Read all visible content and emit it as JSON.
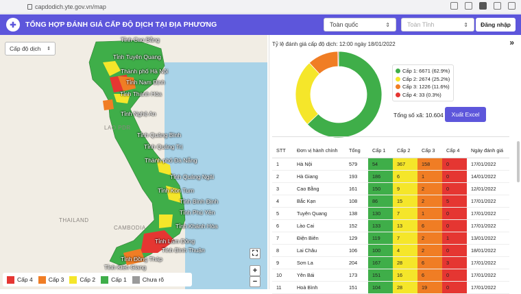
{
  "browser": {
    "url": "capdodich.yte.gov.vn/map"
  },
  "header": {
    "title": "TỔNG HỢP ĐÁNH GIÁ CẤP ĐỘ DỊCH TẠI ĐỊA PHƯƠNG",
    "country_select": "Toàn quốc",
    "province_select_placeholder": "Toàn Tỉnh",
    "login_label": "Đăng nhập",
    "brand_color": "#5d56db"
  },
  "map": {
    "level_select": "Cấp độ dịch",
    "countries": {
      "laos": "LAO PDR",
      "thailand": "THAILAND",
      "cambodia": "CAMBODIA"
    },
    "provinces": [
      "Tỉnh Cao Bằng",
      "Tỉnh Tuyên Quang",
      "Thành phố Hà Nội",
      "Tỉnh Nam Định",
      "Tỉnh Thanh Hóa",
      "Tỉnh Nghệ An",
      "Tỉnh Quảng Bình",
      "Tỉnh Quảng Trị",
      "Thành phố Đà Nẵng",
      "Tỉnh Quảng Ngãi",
      "Tỉnh Kon Tum",
      "Tỉnh Bình Định",
      "Tỉnh Phú Yên",
      "Tỉnh Khánh Hòa",
      "Tỉnh Lâm Đồng",
      "Tỉnh Bình Thuận",
      "Tỉnh Đồng Tháp",
      "Tỉnh Kiên Giang"
    ],
    "controls": {
      "fullscreen": "⛶",
      "zoom_in": "+",
      "zoom_out": "−"
    },
    "legend": [
      {
        "label": "Cấp 4",
        "color": "#e53632"
      },
      {
        "label": "Cấp 3",
        "color": "#f07d24"
      },
      {
        "label": "Cấp 2",
        "color": "#f5e62a"
      },
      {
        "label": "Cấp 1",
        "color": "#3fae49"
      },
      {
        "label": "Chưa rõ",
        "color": "#9a9a9a"
      }
    ]
  },
  "panel": {
    "ratio_title": "Tỷ lệ đánh giá cấp độ dịch: 12:00 ngày 18/01/2022",
    "collapse_icon": "»",
    "total_label": "Tổng số xã: 10.604",
    "export_label": "Xuất Excel"
  },
  "chart_data": {
    "type": "pie",
    "donut": true,
    "title": "Tỷ lệ đánh giá cấp độ dịch: 12:00 ngày 18/01/2022",
    "categories": [
      "Cấp 1",
      "Cấp 2",
      "Cấp 3",
      "Cấp 4"
    ],
    "values": [
      6671,
      2674,
      1226,
      33
    ],
    "percent": [
      62.9,
      25.2,
      11.6,
      0.3
    ],
    "labels": [
      "Cấp 1: 6671 (62.9%)",
      "Cấp 2: 2674 (25.2%)",
      "Cấp 3: 1226 (11.6%)",
      "Cấp 4: 33 (0.3%)"
    ],
    "colors": [
      "#3fae49",
      "#f5e62a",
      "#f07d24",
      "#e53632"
    ],
    "legend_position": "right"
  },
  "table": {
    "headers": [
      "STT",
      "Đơn vị hành chính",
      "Tổng",
      "Cấp 1",
      "Cấp 2",
      "Cấp 3",
      "Cấp 4",
      "Ngày đánh giá"
    ],
    "rows": [
      [
        "1",
        "Hà Nội",
        "579",
        "54",
        "367",
        "158",
        "0",
        "17/01/2022"
      ],
      [
        "2",
        "Hà Giang",
        "193",
        "186",
        "6",
        "1",
        "0",
        "14/01/2022"
      ],
      [
        "3",
        "Cao Bằng",
        "161",
        "150",
        "9",
        "2",
        "0",
        "12/01/2022"
      ],
      [
        "4",
        "Bắc Kạn",
        "108",
        "86",
        "15",
        "2",
        "5",
        "17/01/2022"
      ],
      [
        "5",
        "Tuyên Quang",
        "138",
        "130",
        "7",
        "1",
        "0",
        "17/01/2022"
      ],
      [
        "6",
        "Lào Cai",
        "152",
        "133",
        "13",
        "6",
        "0",
        "17/01/2022"
      ],
      [
        "7",
        "Điện Biên",
        "129",
        "119",
        "7",
        "2",
        "1",
        "13/01/2022"
      ],
      [
        "8",
        "Lai Châu",
        "106",
        "100",
        "4",
        "2",
        "0",
        "18/01/2022"
      ],
      [
        "9",
        "Sơn La",
        "204",
        "167",
        "28",
        "6",
        "3",
        "17/01/2022"
      ],
      [
        "10",
        "Yên Bái",
        "173",
        "151",
        "16",
        "6",
        "0",
        "17/01/2022"
      ],
      [
        "11",
        "Hoà Bình",
        "151",
        "104",
        "28",
        "19",
        "0",
        "17/01/2022"
      ]
    ]
  }
}
